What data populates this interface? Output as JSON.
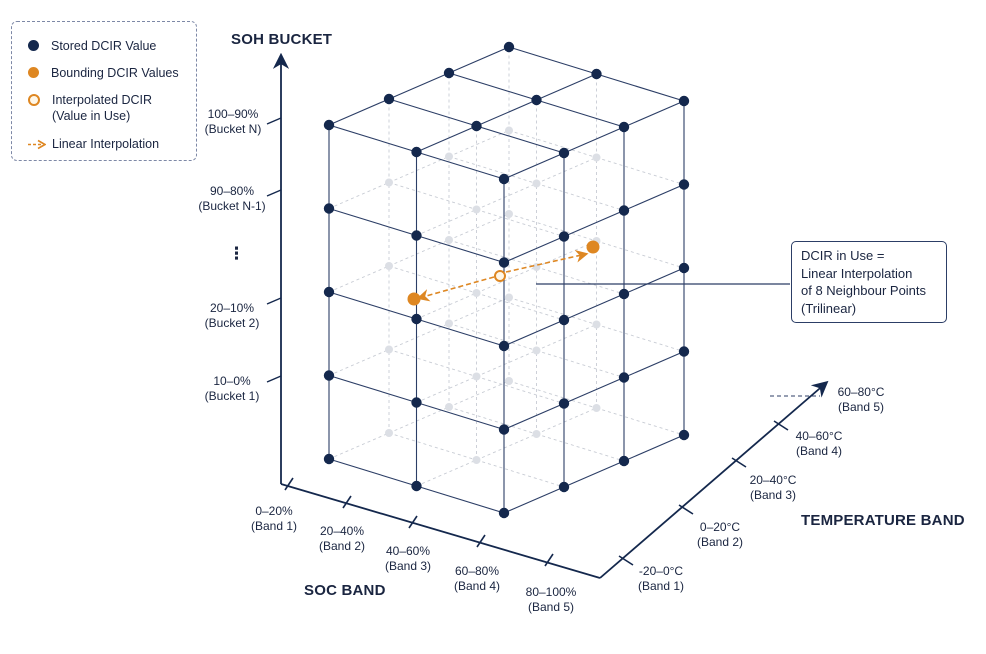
{
  "legend": {
    "stored": "Stored DCIR Value",
    "bounding": "Bounding DCIR Values",
    "interpolated": "Interpolated DCIR\n(Value in Use)",
    "linear": "Linear Interpolation"
  },
  "axes": {
    "soh_title": "SOH BUCKET",
    "soc_title": "SOC BAND",
    "temp_title": "TEMPERATURE BAND",
    "soh_ticks": [
      {
        "label": "100–90%",
        "sub": "(Bucket N)"
      },
      {
        "label": "90–80%",
        "sub": "(Bucket N-1)"
      },
      {
        "label": "20–10%",
        "sub": "(Bucket 2)"
      },
      {
        "label": "10–0%",
        "sub": "(Bucket 1)"
      }
    ],
    "soh_ellipsis": "⋮",
    "soc_ticks": [
      {
        "label": "0–20%",
        "sub": "(Band 1)"
      },
      {
        "label": "20–40%",
        "sub": "(Band 2)"
      },
      {
        "label": "40–60%",
        "sub": "(Band 3)"
      },
      {
        "label": "60–80%",
        "sub": "(Band 4)"
      },
      {
        "label": "80–100%",
        "sub": "(Band 5)"
      }
    ],
    "temp_ticks": [
      {
        "label": "-20–0°C",
        "sub": "(Band 1)"
      },
      {
        "label": "0–20°C",
        "sub": "(Band 2)"
      },
      {
        "label": "20–40°C",
        "sub": "(Band 3)"
      },
      {
        "label": "40–60°C",
        "sub": "(Band 4)"
      },
      {
        "label": "60–80°C",
        "sub": "(Band 5)"
      }
    ]
  },
  "callout": {
    "line1": "DCIR in Use =",
    "line2": "Linear Interpolation",
    "line3": "of 8 Neighbour Points",
    "line4": "(Trilinear)"
  },
  "colors": {
    "navy": "#14284d",
    "orange": "#de8722",
    "interp_fill": "#fff7e8",
    "grid_line": "#2c3e66",
    "faint": "#c8ccd4"
  }
}
